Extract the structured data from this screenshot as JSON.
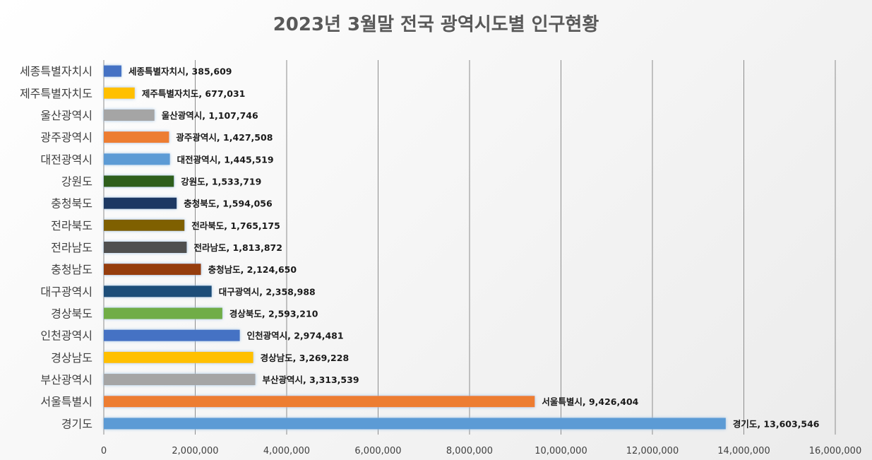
{
  "chart_data": {
    "type": "bar",
    "orientation": "horizontal",
    "title": "2023년 3월말 전국 광역시도별 인구현황",
    "xlim": [
      0,
      16000000
    ],
    "x_ticks": [
      0,
      2000000,
      4000000,
      6000000,
      8000000,
      10000000,
      12000000,
      14000000,
      16000000
    ],
    "x_tick_labels": [
      "0",
      "2,000,000",
      "4,000,000",
      "6,000,000",
      "8,000,000",
      "10,000,000",
      "12,000,000",
      "14,000,000",
      "16,000,000"
    ],
    "grid": "vertical",
    "legend": "none",
    "categories": [
      "세종특별자치시",
      "제주특별자치도",
      "울산광역시",
      "광주광역시",
      "대전광역시",
      "강원도",
      "충청북도",
      "전라북도",
      "전라남도",
      "충청남도",
      "대구광역시",
      "경상북도",
      "인천광역시",
      "경상남도",
      "부산광역시",
      "서울특별시",
      "경기도"
    ],
    "values": [
      385609,
      677031,
      1107746,
      1427508,
      1445519,
      1533719,
      1594056,
      1765175,
      1813872,
      2124650,
      2358988,
      2593210,
      2974481,
      3269228,
      3313539,
      9426404,
      13603546
    ],
    "data_labels": [
      "세종특별자치시, 385,609",
      "제주특별자치도, 677,031",
      "울산광역시, 1,107,746",
      "광주광역시, 1,427,508",
      "대전광역시, 1,445,519",
      "강원도, 1,533,719",
      "충청북도, 1,594,056",
      "전라북도, 1,765,175",
      "전라남도, 1,813,872",
      "충청남도, 2,124,650",
      "대구광역시, 2,358,988",
      "경상북도, 2,593,210",
      "인천광역시, 2,974,481",
      "경상남도, 3,269,228",
      "부산광역시, 3,313,539",
      "서울특별시, 9,426,404",
      "경기도, 13,603,546"
    ],
    "colors": [
      "#4472C4",
      "#FFC000",
      "#A5A5A5",
      "#ED7D31",
      "#5B9BD5",
      "#2E5E1E",
      "#1F3864",
      "#7F6000",
      "#505050",
      "#953D0C",
      "#1E4E79",
      "#70AD47",
      "#4472C4",
      "#FFC000",
      "#A5A5A5",
      "#ED7D31",
      "#5B9BD5"
    ]
  }
}
